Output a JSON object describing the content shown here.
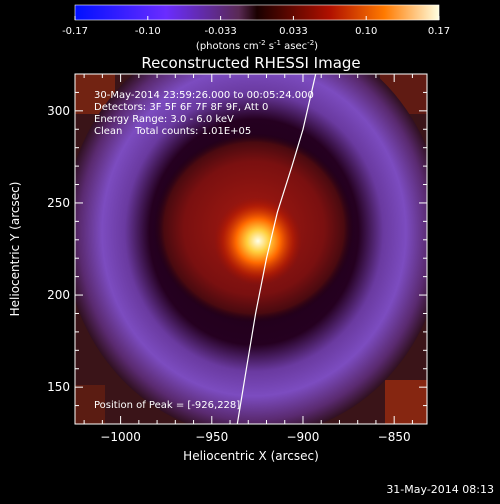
{
  "colorbar": {
    "ticks": [
      "-0.17",
      "-0.10",
      "-0.033",
      "0.033",
      "0.10",
      "0.17"
    ],
    "unit_label": "(photons cm",
    "unit_exp1": "-2",
    "unit_mid": " s",
    "unit_exp2": "-1",
    "unit_mid2": " asec",
    "unit_exp3": "-2",
    "unit_end": ")"
  },
  "chart_data": {
    "type": "heatmap",
    "title": "Reconstructed RHESSI Image",
    "xlabel": "Heliocentric X (arcsec)",
    "ylabel": "Heliocentric Y (arcsec)",
    "xlim": [
      -1025,
      -832
    ],
    "ylim": [
      130,
      320
    ],
    "xticks": [
      -1000,
      -950,
      -900,
      -850
    ],
    "yticks": [
      150,
      200,
      250,
      300
    ],
    "xtick_labels": [
      "−1000",
      "−950",
      "−900",
      "−850"
    ],
    "ytick_labels": [
      "150",
      "200",
      "250",
      "300"
    ],
    "value_range": [
      -0.17,
      0.17
    ],
    "peak": [
      -926,
      228
    ],
    "limb_curve": [
      [
        -936,
        130
      ],
      [
        -931,
        160
      ],
      [
        -926,
        190
      ],
      [
        -920,
        220
      ],
      [
        -914,
        245
      ],
      [
        -906,
        270
      ],
      [
        -900,
        290
      ],
      [
        -893,
        320
      ]
    ],
    "annotations": [
      "30-May-2014 23:59:26.000 to 00:05:24.000",
      "Detectors: 3F 5F 6F 7F 8F 9F, Att 0",
      "Energy Range: 3.0 - 6.0 keV",
      "Clean    Total counts: 1.01E+05"
    ],
    "peak_label": "Position of Peak = [-926,228]"
  },
  "timestamp": "31-May-2014 08:13"
}
